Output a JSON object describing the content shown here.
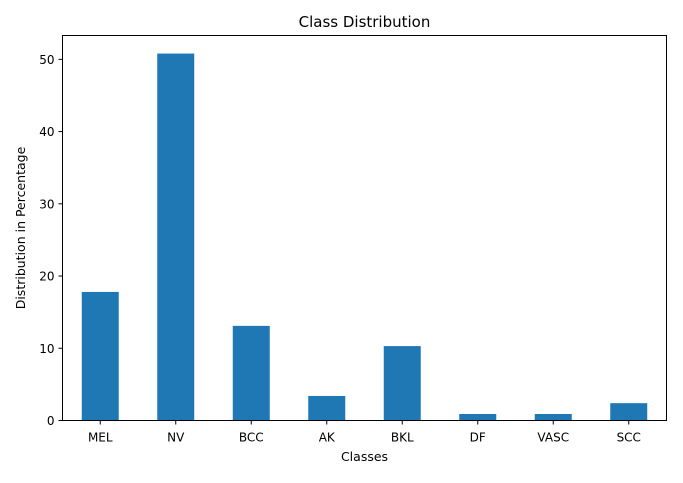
{
  "chart_data": {
    "type": "bar",
    "title": "Class Distribution",
    "xlabel": "Classes",
    "ylabel": "Distribution in Percentage",
    "categories": [
      "MEL",
      "NV",
      "BCC",
      "AK",
      "BKL",
      "DF",
      "VASC",
      "SCC"
    ],
    "values": [
      17.8,
      50.8,
      13.1,
      3.4,
      10.3,
      0.9,
      0.9,
      2.4
    ],
    "ylim": [
      0,
      53.3
    ],
    "yticks": [
      0,
      10,
      20,
      30,
      40,
      50
    ],
    "bar_color": "#1f77b4",
    "grid": false,
    "legend": "none"
  }
}
